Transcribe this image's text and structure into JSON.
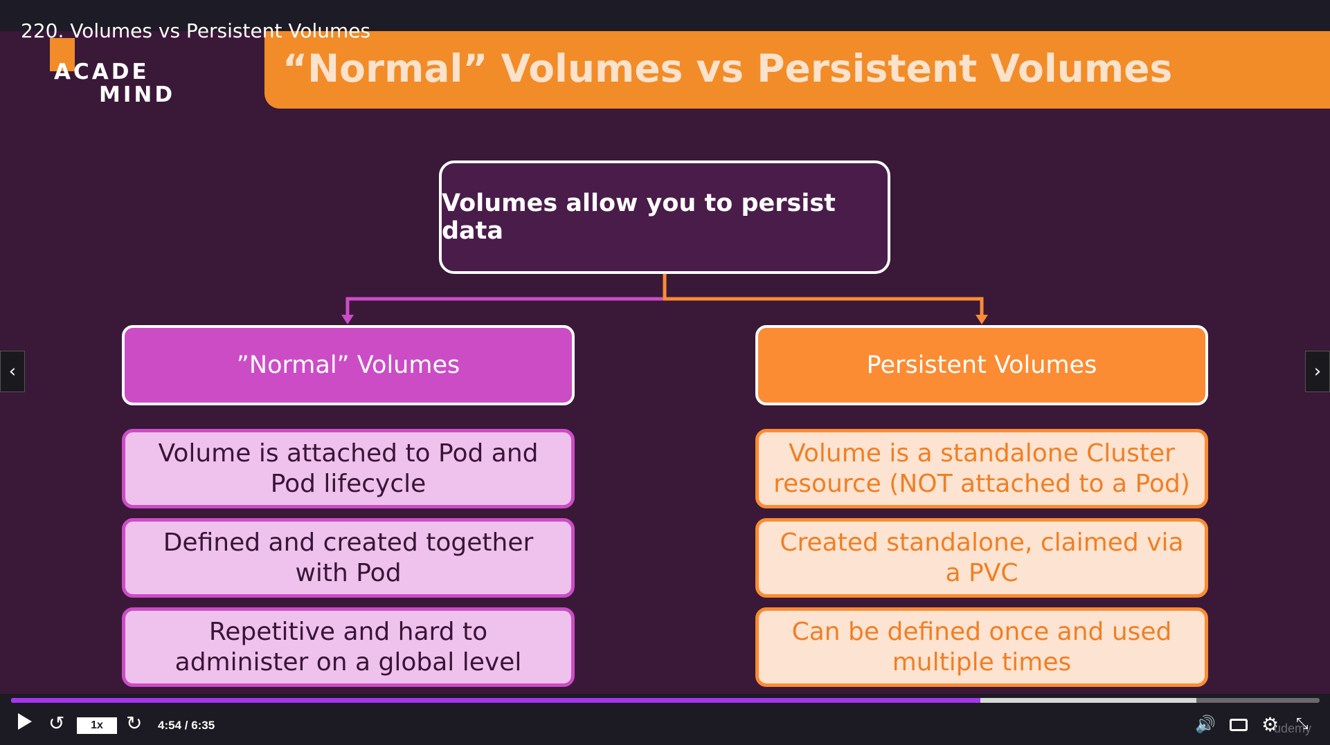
{
  "lecture": {
    "title": "220. Volumes vs Persistent Volumes"
  },
  "slide": {
    "logo": {
      "line1": "ACADE",
      "line2": "MIND"
    },
    "headline": "“Normal” Volumes vs Persistent Volumes",
    "root": "Volumes allow you to persist data",
    "normal": {
      "header": "”Normal” Volumes",
      "items": [
        "Volume is attached to Pod and Pod lifecycle",
        "Defined and created together with Pod",
        "Repetitive and hard to administer on a global level"
      ]
    },
    "persistent": {
      "header": "Persistent Volumes",
      "items": [
        "Volume is a standalone Cluster resource (NOT attached to a Pod)",
        "Created standalone, claimed via a PVC",
        "Can be defined once and used multiple times"
      ]
    },
    "colors": {
      "background": "#3a1838",
      "orange": "#fb8c33",
      "magenta": "#cc4cc6"
    }
  },
  "player": {
    "speed": "1x",
    "time": "4:54 / 6:35",
    "progress_played": 0.741,
    "progress_buffered": 0.906,
    "watermark": "udemy",
    "icons": [
      "play-icon",
      "rewind-icon",
      "forward-icon",
      "volume-icon",
      "captions-icon",
      "settings-icon",
      "fullscreen-exit-icon"
    ]
  }
}
